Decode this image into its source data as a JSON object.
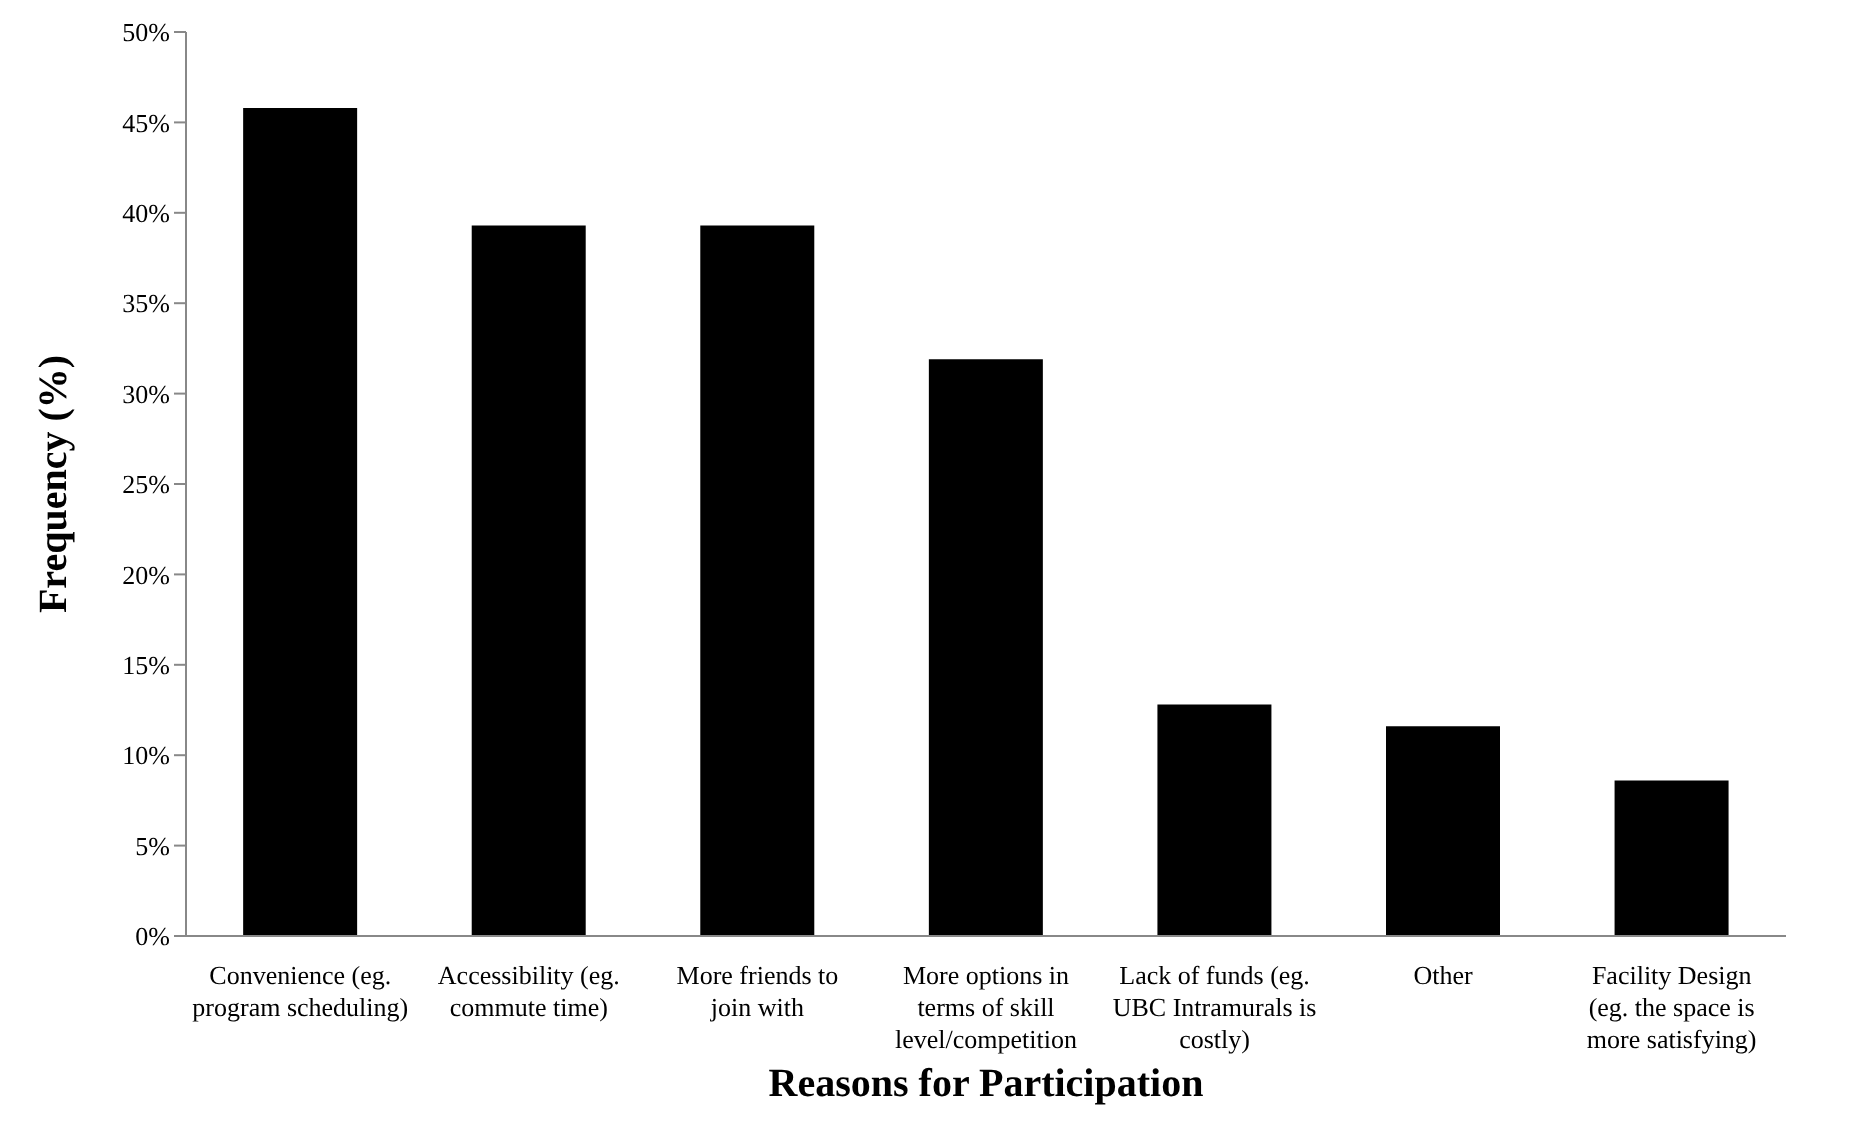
{
  "chart_data": {
    "type": "bar",
    "xlabel": "Reasons for Participation",
    "ylabel": "Frequency (%)",
    "categories": [
      "Convenience (eg. program scheduling)",
      "Accessibility (eg. commute time)",
      "More friends to join with",
      "More options in terms of skill level/competition",
      "Lack of funds (eg. UBC Intramurals is costly)",
      "Other",
      "Facility Design (eg. the space is more satisfying)"
    ],
    "values": [
      45.8,
      39.3,
      39.3,
      31.9,
      12.8,
      11.6,
      8.6
    ],
    "color": "#000000",
    "ylim": [
      0,
      50
    ],
    "yticks": [
      {
        "value": 0,
        "label": "0%"
      },
      {
        "value": 5,
        "label": "5%"
      },
      {
        "value": 10,
        "label": "10%"
      },
      {
        "value": 15,
        "label": "15%"
      },
      {
        "value": 20,
        "label": "20%"
      },
      {
        "value": 25,
        "label": "25%"
      },
      {
        "value": 30,
        "label": "30%"
      },
      {
        "value": 35,
        "label": "35%"
      },
      {
        "value": 40,
        "label": "40%"
      },
      {
        "value": 45,
        "label": "45%"
      },
      {
        "value": 50,
        "label": "50%"
      }
    ],
    "grid": false,
    "legend": false
  }
}
